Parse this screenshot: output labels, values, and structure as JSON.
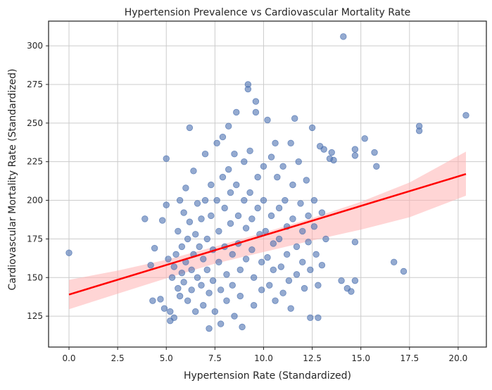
{
  "chart_data": {
    "type": "scatter",
    "title": "Hypertension Prevalence vs Cardiovascular Mortality Rate",
    "xlabel": "Hypertension Rate (Standardized)",
    "ylabel": "Cardiovascular Mortality Rate (Standardized)",
    "xlim": [
      -1.05,
      21.45
    ],
    "ylim": [
      105,
      316
    ],
    "x_ticks": [
      0.0,
      2.5,
      5.0,
      7.5,
      10.0,
      12.5,
      15.0,
      17.5,
      20.0
    ],
    "x_tick_labels": [
      "0.0",
      "2.5",
      "5.0",
      "7.5",
      "10.0",
      "12.5",
      "15.0",
      "17.5",
      "20.0"
    ],
    "y_ticks": [
      125,
      150,
      175,
      200,
      225,
      250,
      275,
      300
    ],
    "y_tick_labels": [
      "125",
      "150",
      "175",
      "200",
      "225",
      "250",
      "275",
      "300"
    ],
    "grid": true,
    "colors": {
      "points": "#4C72B0",
      "regression_line": "#ff0000",
      "confidence_band": "#ffb3b3",
      "grid": "#cccccc",
      "axes": "#262626"
    },
    "regression": {
      "x": [
        0.0,
        20.4
      ],
      "y": [
        139.0,
        217.0
      ]
    },
    "confidence_band": {
      "x": [
        0.0,
        2.5,
        5.0,
        7.5,
        10.0,
        12.5,
        15.0,
        17.5,
        20.4
      ],
      "upper": [
        148.5,
        154.5,
        161.5,
        170.0,
        179.0,
        188.5,
        199.0,
        211.5,
        231.5
      ],
      "lower": [
        129.5,
        139.5,
        149.5,
        159.0,
        166.5,
        174.0,
        181.0,
        189.0,
        203.0
      ]
    },
    "points": [
      [
        0.0,
        166
      ],
      [
        3.9,
        188
      ],
      [
        4.2,
        158
      ],
      [
        4.3,
        135
      ],
      [
        4.4,
        169
      ],
      [
        4.7,
        136
      ],
      [
        4.8,
        187
      ],
      [
        4.9,
        130
      ],
      [
        5.0,
        197
      ],
      [
        5.0,
        227
      ],
      [
        5.1,
        162
      ],
      [
        5.2,
        128
      ],
      [
        5.2,
        122
      ],
      [
        5.3,
        150
      ],
      [
        5.4,
        157
      ],
      [
        5.4,
        124
      ],
      [
        5.5,
        165
      ],
      [
        5.6,
        143
      ],
      [
        5.6,
        180
      ],
      [
        5.7,
        200
      ],
      [
        5.7,
        138
      ],
      [
        5.8,
        153
      ],
      [
        5.8,
        170
      ],
      [
        5.9,
        192
      ],
      [
        5.9,
        147
      ],
      [
        6.0,
        208
      ],
      [
        6.0,
        160
      ],
      [
        6.1,
        175
      ],
      [
        6.1,
        135
      ],
      [
        6.2,
        247
      ],
      [
        6.2,
        186
      ],
      [
        6.3,
        155
      ],
      [
        6.3,
        142
      ],
      [
        6.4,
        219
      ],
      [
        6.4,
        165
      ],
      [
        6.5,
        178
      ],
      [
        6.5,
        128
      ],
      [
        6.6,
        198
      ],
      [
        6.6,
        150
      ],
      [
        6.7,
        170
      ],
      [
        6.8,
        188
      ],
      [
        6.8,
        145
      ],
      [
        6.9,
        162
      ],
      [
        6.9,
        132
      ],
      [
        7.0,
        230
      ],
      [
        7.0,
        200
      ],
      [
        7.1,
        175
      ],
      [
        7.1,
        155
      ],
      [
        7.2,
        140
      ],
      [
        7.2,
        117
      ],
      [
        7.3,
        210
      ],
      [
        7.3,
        190
      ],
      [
        7.4,
        168
      ],
      [
        7.4,
        148
      ],
      [
        7.5,
        128
      ],
      [
        7.6,
        200
      ],
      [
        7.6,
        237
      ],
      [
        7.7,
        180
      ],
      [
        7.7,
        160
      ],
      [
        7.8,
        142
      ],
      [
        7.8,
        120
      ],
      [
        7.9,
        241
      ],
      [
        7.9,
        215
      ],
      [
        8.0,
        195
      ],
      [
        8.0,
        170
      ],
      [
        8.1,
        152
      ],
      [
        8.1,
        135
      ],
      [
        8.2,
        220
      ],
      [
        8.2,
        248
      ],
      [
        8.3,
        205
      ],
      [
        8.3,
        185
      ],
      [
        8.4,
        165
      ],
      [
        8.4,
        145
      ],
      [
        8.5,
        125
      ],
      [
        8.5,
        230
      ],
      [
        8.6,
        257
      ],
      [
        8.6,
        210
      ],
      [
        8.7,
        190
      ],
      [
        8.7,
        172
      ],
      [
        8.8,
        155
      ],
      [
        8.8,
        138
      ],
      [
        8.9,
        118
      ],
      [
        9.0,
        225
      ],
      [
        9.0,
        200
      ],
      [
        9.1,
        182
      ],
      [
        9.1,
        162
      ],
      [
        9.2,
        272
      ],
      [
        9.2,
        275
      ],
      [
        9.3,
        232
      ],
      [
        9.3,
        205
      ],
      [
        9.4,
        188
      ],
      [
        9.4,
        168
      ],
      [
        9.5,
        150
      ],
      [
        9.5,
        132
      ],
      [
        9.6,
        264
      ],
      [
        9.6,
        257
      ],
      [
        9.7,
        215
      ],
      [
        9.7,
        195
      ],
      [
        9.8,
        178
      ],
      [
        9.9,
        160
      ],
      [
        9.9,
        142
      ],
      [
        10.0,
        222
      ],
      [
        10.0,
        200
      ],
      [
        10.1,
        180
      ],
      [
        10.2,
        252
      ],
      [
        10.2,
        163
      ],
      [
        10.3,
        145
      ],
      [
        10.4,
        228
      ],
      [
        10.4,
        190
      ],
      [
        10.5,
        172
      ],
      [
        10.5,
        155
      ],
      [
        10.6,
        237
      ],
      [
        10.6,
        135
      ],
      [
        10.7,
        215
      ],
      [
        10.8,
        195
      ],
      [
        10.8,
        175
      ],
      [
        10.9,
        157
      ],
      [
        11.0,
        140
      ],
      [
        11.0,
        222
      ],
      [
        11.1,
        200
      ],
      [
        11.2,
        183
      ],
      [
        11.2,
        165
      ],
      [
        11.3,
        148
      ],
      [
        11.4,
        237
      ],
      [
        11.4,
        130
      ],
      [
        11.5,
        210
      ],
      [
        11.5,
        188
      ],
      [
        11.6,
        253
      ],
      [
        11.7,
        170
      ],
      [
        11.7,
        152
      ],
      [
        11.8,
        225
      ],
      [
        11.9,
        198
      ],
      [
        12.0,
        180
      ],
      [
        12.0,
        160
      ],
      [
        12.1,
        143
      ],
      [
        12.2,
        213
      ],
      [
        12.3,
        190
      ],
      [
        12.3,
        173
      ],
      [
        12.4,
        155
      ],
      [
        12.4,
        124
      ],
      [
        12.5,
        247
      ],
      [
        12.6,
        200
      ],
      [
        12.6,
        183
      ],
      [
        12.7,
        165
      ],
      [
        12.8,
        145
      ],
      [
        12.8,
        124
      ],
      [
        12.9,
        235
      ],
      [
        13.0,
        192
      ],
      [
        13.0,
        158
      ],
      [
        13.1,
        233
      ],
      [
        13.2,
        175
      ],
      [
        13.4,
        227
      ],
      [
        13.5,
        231
      ],
      [
        13.6,
        226
      ],
      [
        14.0,
        148
      ],
      [
        14.1,
        306
      ],
      [
        14.3,
        143
      ],
      [
        14.5,
        141
      ],
      [
        14.7,
        233
      ],
      [
        14.7,
        229
      ],
      [
        14.7,
        173
      ],
      [
        14.7,
        148
      ],
      [
        15.2,
        240
      ],
      [
        15.7,
        231
      ],
      [
        15.8,
        222
      ],
      [
        16.7,
        160
      ],
      [
        17.2,
        154
      ],
      [
        18.0,
        248
      ],
      [
        18.0,
        245
      ],
      [
        20.4,
        255
      ]
    ]
  }
}
